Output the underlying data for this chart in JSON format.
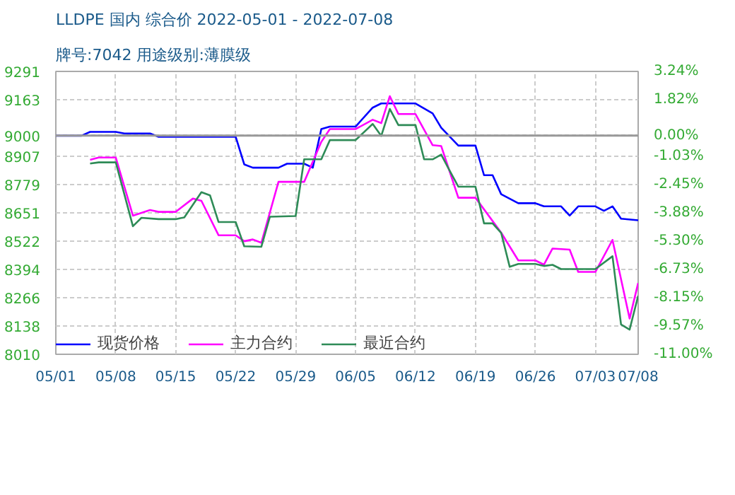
{
  "chart_data": {
    "type": "line",
    "title": "LLDPE 国内 综合价 2022-05-01 - 2022-07-08",
    "subtitle": "牌号:7042 用途级别:薄膜级",
    "xlim": [
      "2022-05-01",
      "2022-07-08"
    ],
    "xticks": [
      {
        "value": "2022-05-01",
        "label": "05/01"
      },
      {
        "value": "2022-05-08",
        "label": "05/08"
      },
      {
        "value": "2022-05-15",
        "label": "05/15"
      },
      {
        "value": "2022-05-22",
        "label": "05/22"
      },
      {
        "value": "2022-05-29",
        "label": "05/29"
      },
      {
        "value": "2022-06-05",
        "label": "06/05"
      },
      {
        "value": "2022-06-12",
        "label": "06/12"
      },
      {
        "value": "2022-06-19",
        "label": "06/19"
      },
      {
        "value": "2022-06-26",
        "label": "06/26"
      },
      {
        "value": "2022-07-03",
        "label": "07/03"
      },
      {
        "value": "2022-07-08",
        "label": "07/08"
      }
    ],
    "ylim": [
      8010,
      9291
    ],
    "yticks": [
      8010,
      8138,
      8266,
      8394,
      8522,
      8651,
      8779,
      8907,
      9000,
      9163,
      9291
    ],
    "y2lim": [
      -11.0,
      3.24
    ],
    "y2ticks": [
      {
        "value": -11.0,
        "label": "-11.00%"
      },
      {
        "value": -9.57,
        "label": "-9.57%"
      },
      {
        "value": -8.15,
        "label": "-8.15%"
      },
      {
        "value": -6.73,
        "label": "-6.73%"
      },
      {
        "value": -5.3,
        "label": "-5.30%"
      },
      {
        "value": -3.88,
        "label": "-3.88%"
      },
      {
        "value": -2.45,
        "label": "-2.45%"
      },
      {
        "value": -1.03,
        "label": "-1.03%"
      },
      {
        "value": 0,
        "label": "0.00%"
      },
      {
        "value": 1.82,
        "label": "1.82%"
      },
      {
        "value": 3.24,
        "label": "3.24%"
      }
    ],
    "grid": true,
    "legend": "bottom",
    "line_style": "solid",
    "marker": "none",
    "ref_lines": [
      {
        "axis": "y",
        "value": 9000,
        "color": "#999999"
      }
    ],
    "series": [
      {
        "name": "现货价格",
        "color": "#0000ff",
        "x": [
          "2022-05-01",
          "2022-05-04",
          "2022-05-05",
          "2022-05-08",
          "2022-05-09",
          "2022-05-12",
          "2022-05-13",
          "2022-05-22",
          "2022-05-23",
          "2022-05-24",
          "2022-05-27",
          "2022-05-28",
          "2022-05-30",
          "2022-05-31",
          "2022-06-01",
          "2022-06-02",
          "2022-06-05",
          "2022-06-07",
          "2022-06-08",
          "2022-06-12",
          "2022-06-14",
          "2022-06-15",
          "2022-06-17",
          "2022-06-19",
          "2022-06-20",
          "2022-06-21",
          "2022-06-22",
          "2022-06-24",
          "2022-06-26",
          "2022-06-27",
          "2022-06-29",
          "2022-06-30",
          "2022-07-01",
          "2022-07-03",
          "2022-07-04",
          "2022-07-05",
          "2022-07-06",
          "2022-07-08"
        ],
        "values": [
          9000,
          9000,
          9017,
          9017,
          9010,
          9010,
          8995,
          8995,
          8870,
          8855,
          8855,
          8873,
          8873,
          8855,
          9030,
          9041,
          9041,
          9127,
          9146,
          9146,
          9101,
          9036,
          8955,
          8955,
          8821,
          8821,
          8735,
          8694,
          8694,
          8680,
          8680,
          8638,
          8680,
          8680,
          8660,
          8680,
          8624,
          8617
        ]
      },
      {
        "name": "主力合约",
        "color": "#ff00ff",
        "x": [
          "2022-05-05",
          "2022-05-06",
          "2022-05-08",
          "2022-05-10",
          "2022-05-12",
          "2022-05-13",
          "2022-05-15",
          "2022-05-17",
          "2022-05-18",
          "2022-05-20",
          "2022-05-22",
          "2022-05-23",
          "2022-05-24",
          "2022-05-25",
          "2022-05-27",
          "2022-05-30",
          "2022-06-01",
          "2022-06-02",
          "2022-06-05",
          "2022-06-07",
          "2022-06-08",
          "2022-06-09",
          "2022-06-10",
          "2022-06-12",
          "2022-06-14",
          "2022-06-15",
          "2022-06-17",
          "2022-06-19",
          "2022-06-22",
          "2022-06-24",
          "2022-06-26",
          "2022-06-27",
          "2022-06-28",
          "2022-06-30",
          "2022-07-01",
          "2022-07-03",
          "2022-07-05",
          "2022-07-07",
          "2022-07-08"
        ],
        "values": [
          8891,
          8901,
          8901,
          8638,
          8663,
          8655,
          8655,
          8715,
          8705,
          8549,
          8549,
          8522,
          8530,
          8515,
          8791,
          8791,
          8972,
          9030,
          9030,
          9072,
          9057,
          9179,
          9098,
          9098,
          8957,
          8953,
          8719,
          8719,
          8561,
          8435,
          8435,
          8416,
          8489,
          8484,
          8383,
          8383,
          8528,
          8172,
          8333
        ]
      },
      {
        "name": "最近合约",
        "color": "#2e8b57",
        "x": [
          "2022-05-05",
          "2022-05-06",
          "2022-05-08",
          "2022-05-10",
          "2022-05-11",
          "2022-05-13",
          "2022-05-15",
          "2022-05-16",
          "2022-05-18",
          "2022-05-19",
          "2022-05-20",
          "2022-05-22",
          "2022-05-23",
          "2022-05-25",
          "2022-05-26",
          "2022-05-29",
          "2022-05-30",
          "2022-06-01",
          "2022-06-02",
          "2022-06-05",
          "2022-06-07",
          "2022-06-08",
          "2022-06-09",
          "2022-06-10",
          "2022-06-12",
          "2022-06-13",
          "2022-06-14",
          "2022-06-15",
          "2022-06-16",
          "2022-06-17",
          "2022-06-19",
          "2022-06-20",
          "2022-06-21",
          "2022-06-22",
          "2022-06-23",
          "2022-06-24",
          "2022-06-26",
          "2022-06-27",
          "2022-06-28",
          "2022-06-29",
          "2022-07-03",
          "2022-07-05",
          "2022-07-06",
          "2022-07-07",
          "2022-07-08"
        ],
        "values": [
          8874,
          8879,
          8879,
          8590,
          8628,
          8622,
          8622,
          8630,
          8744,
          8730,
          8609,
          8609,
          8499,
          8497,
          8633,
          8636,
          8893,
          8893,
          8980,
          8980,
          9053,
          8999,
          9121,
          9048,
          9048,
          8893,
          8893,
          8914,
          8841,
          8769,
          8769,
          8603,
          8603,
          8560,
          8406,
          8419,
          8419,
          8410,
          8415,
          8396,
          8396,
          8454,
          8145,
          8122,
          8275
        ]
      }
    ]
  }
}
